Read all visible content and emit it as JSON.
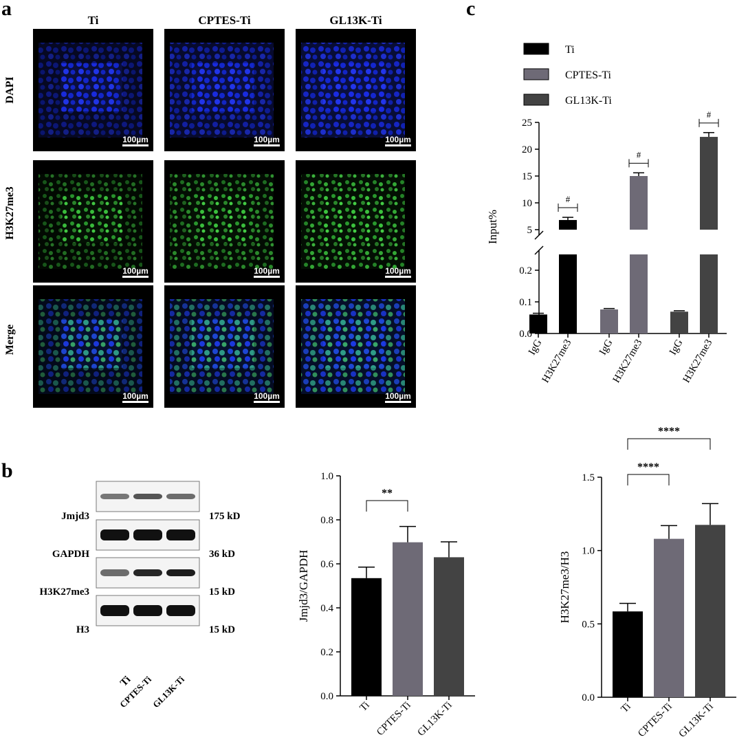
{
  "panels": {
    "a": "a",
    "b": "b",
    "c": "c"
  },
  "microscopy": {
    "columns": [
      "Ti",
      "CPTES-Ti",
      "GL13K-Ti"
    ],
    "rows": [
      "DAPI",
      "H3K27me3",
      "Merge"
    ],
    "scale_bar": "100µm"
  },
  "blot": {
    "rows": [
      {
        "protein": "Jmjd3",
        "size": "175 kD"
      },
      {
        "protein": "GAPDH",
        "size": "36 kD"
      },
      {
        "protein": "H3K27me3",
        "size": "15 kD"
      },
      {
        "protein": "H3",
        "size": "15 kD"
      }
    ],
    "lanes": [
      "Ti",
      "CPTES-Ti",
      "GL13K-Ti"
    ]
  },
  "colors": {
    "ti": "#000000",
    "cptes": "#6e6a76",
    "gl13k": "#434343",
    "dapi": "#1628d8",
    "h3k": "#36c43a"
  },
  "chart_data": [
    {
      "id": "jmjd3",
      "type": "bar",
      "categories": [
        "Ti",
        "CPTES-Ti",
        "GL13K-Ti"
      ],
      "values": [
        0.535,
        0.698,
        0.63
      ],
      "errors": [
        0.05,
        0.072,
        0.07
      ],
      "ylabel": "Jmjd3/GAPDH",
      "ylim": [
        0,
        1.0
      ],
      "yticks": [
        "0.0",
        "0.2",
        "0.4",
        "0.6",
        "0.8",
        "1.0"
      ],
      "significance": [
        {
          "from": 0,
          "to": 1,
          "label": "**"
        }
      ]
    },
    {
      "id": "h3k27",
      "type": "bar",
      "categories": [
        "Ti",
        "CPTES-Ti",
        "GL13K-Ti"
      ],
      "values": [
        0.585,
        1.08,
        1.175
      ],
      "errors": [
        0.055,
        0.09,
        0.145
      ],
      "ylabel": "H3K27me3/H3",
      "ylim": [
        0,
        1.5
      ],
      "yticks": [
        "0.0",
        "0.5",
        "1.0",
        "1.5"
      ],
      "significance": [
        {
          "from": 0,
          "to": 1,
          "label": "****"
        },
        {
          "from": 0,
          "to": 2,
          "label": "****"
        }
      ]
    },
    {
      "id": "chip",
      "type": "bar",
      "ylabel": "Input%",
      "legend": [
        "Ti",
        "CPTES-Ti",
        "GL13K-Ti"
      ],
      "categories": [
        "IgG",
        "H3K27me3",
        "IgG",
        "H3K27me3",
        "IgG",
        "H3K27me3"
      ],
      "groups": [
        "Ti",
        "Ti",
        "CPTES-Ti",
        "CPTES-Ti",
        "GL13K-Ti",
        "GL13K-Ti"
      ],
      "values": [
        0.06,
        6.8,
        0.076,
        15.0,
        0.069,
        22.3
      ],
      "errors": [
        0.004,
        0.5,
        0.003,
        0.6,
        0.003,
        0.8
      ],
      "lower_ylim": [
        0,
        0.25
      ],
      "upper_ylim": [
        5,
        25
      ],
      "lower_yticks": [
        "0.0",
        "0.1",
        "0.2"
      ],
      "upper_yticks": [
        "5",
        "10",
        "15",
        "20",
        "25"
      ],
      "significance_label": "#"
    }
  ]
}
